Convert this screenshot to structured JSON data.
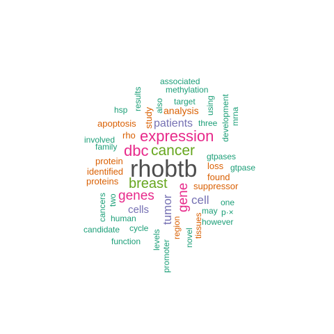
{
  "palette": {
    "dark_gray": "#4d4d4d",
    "green": "#1b9e77",
    "orange": "#d95f02",
    "purple": "#7570b3",
    "magenta": "#e7298a",
    "lime": "#66a61e"
  },
  "words": [
    {
      "text": "rhobtb",
      "color": "dark_gray",
      "vertical": false
    },
    {
      "text": "expression",
      "color": "magenta",
      "vertical": false
    },
    {
      "text": "dbc",
      "color": "magenta",
      "vertical": false
    },
    {
      "text": "cancer",
      "color": "lime",
      "vertical": false
    },
    {
      "text": "breast",
      "color": "lime",
      "vertical": false
    },
    {
      "text": "genes",
      "color": "magenta",
      "vertical": false
    },
    {
      "text": "gene",
      "color": "magenta",
      "vertical": true
    },
    {
      "text": "tumor",
      "color": "purple",
      "vertical": true
    },
    {
      "text": "cell",
      "color": "purple",
      "vertical": false
    },
    {
      "text": "cells",
      "color": "purple",
      "vertical": false
    },
    {
      "text": "patients",
      "color": "purple",
      "vertical": false
    },
    {
      "text": "analysis",
      "color": "orange",
      "vertical": false
    },
    {
      "text": "suppressor",
      "color": "orange",
      "vertical": false
    },
    {
      "text": "found",
      "color": "orange",
      "vertical": false
    },
    {
      "text": "loss",
      "color": "orange",
      "vertical": false
    },
    {
      "text": "protein",
      "color": "orange",
      "vertical": false
    },
    {
      "text": "identified",
      "color": "orange",
      "vertical": false
    },
    {
      "text": "proteins",
      "color": "orange",
      "vertical": false
    },
    {
      "text": "rho",
      "color": "orange",
      "vertical": false
    },
    {
      "text": "apoptosis",
      "color": "orange",
      "vertical": false
    },
    {
      "text": "study",
      "color": "orange",
      "vertical": true
    },
    {
      "text": "region",
      "color": "orange",
      "vertical": true
    },
    {
      "text": "tissues",
      "color": "orange",
      "vertical": true
    },
    {
      "text": "gtpases",
      "color": "green",
      "vertical": false
    },
    {
      "text": "gtpase",
      "color": "green",
      "vertical": false
    },
    {
      "text": "three",
      "color": "green",
      "vertical": false
    },
    {
      "text": "target",
      "color": "green",
      "vertical": false
    },
    {
      "text": "methylation",
      "color": "green",
      "vertical": false
    },
    {
      "text": "associated",
      "color": "green",
      "vertical": false
    },
    {
      "text": "hsp",
      "color": "green",
      "vertical": false
    },
    {
      "text": "results",
      "color": "green",
      "vertical": true
    },
    {
      "text": "also",
      "color": "green",
      "vertical": true
    },
    {
      "text": "using",
      "color": "green",
      "vertical": true
    },
    {
      "text": "development",
      "color": "green",
      "vertical": true
    },
    {
      "text": "mrna",
      "color": "green",
      "vertical": true
    },
    {
      "text": "involved",
      "color": "green",
      "vertical": false
    },
    {
      "text": "family",
      "color": "green",
      "vertical": false
    },
    {
      "text": "cancers",
      "color": "green",
      "vertical": true
    },
    {
      "text": "two",
      "color": "green",
      "vertical": true
    },
    {
      "text": "human",
      "color": "green",
      "vertical": false
    },
    {
      "text": "candidate",
      "color": "green",
      "vertical": false
    },
    {
      "text": "cycle",
      "color": "green",
      "vertical": false
    },
    {
      "text": "function",
      "color": "green",
      "vertical": false
    },
    {
      "text": "levels",
      "color": "green",
      "vertical": true
    },
    {
      "text": "promoter",
      "color": "green",
      "vertical": true
    },
    {
      "text": "novel",
      "color": "green",
      "vertical": true
    },
    {
      "text": "one",
      "color": "green",
      "vertical": false
    },
    {
      "text": "may",
      "color": "green",
      "vertical": false
    },
    {
      "text": "p·×",
      "color": "green",
      "vertical": false
    },
    {
      "text": "however",
      "color": "green",
      "vertical": false
    }
  ]
}
